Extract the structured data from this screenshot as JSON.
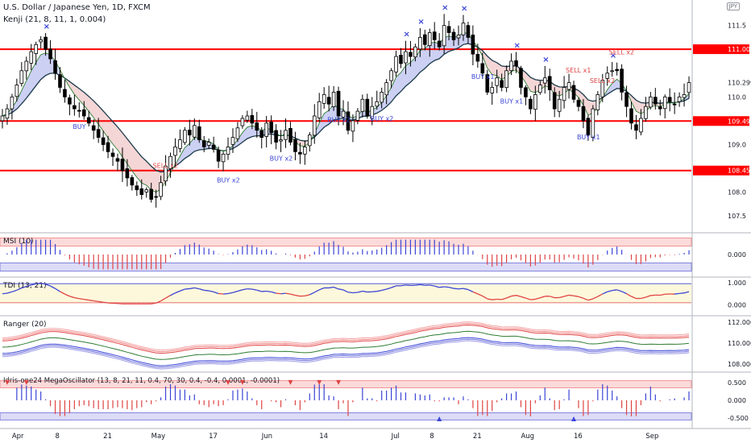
{
  "header": {
    "symbol": "U.S. Dollar / Japanese Yen, 1D, FXCM",
    "study": "Kenji (21, 8, 11, 1, 0.004)",
    "currency": "JPY"
  },
  "colors": {
    "up": "#ffffff",
    "down": "#000000",
    "level": "#ff0000",
    "buy_text": "#3b45d6",
    "sell_text": "#e04343",
    "marker": "#3b45d6",
    "cloud_bull": "#c7cbf2",
    "cloud_bear": "#f3d1d1",
    "osc_pos": "#3b45d6",
    "osc_neg": "#e04343"
  },
  "chart_data": [
    {
      "type": "candlestick",
      "title": "U.S. Dollar / Japanese Yen, 1D, FXCM",
      "ylim": [
        107.3,
        111.9
      ],
      "y_ticks": [
        107.5,
        108.0,
        109.0,
        110.0,
        111.5
      ],
      "x_tick_labels": [
        "Apr",
        "8",
        "21",
        "May",
        "17",
        "Jun",
        "14",
        "Jul",
        "8",
        "21",
        "Aug",
        "16",
        "Sep"
      ],
      "x_tick_index": [
        3,
        12,
        22,
        32,
        44,
        55,
        67,
        82,
        90,
        99,
        109,
        120,
        135
      ],
      "levels": [
        {
          "value": 111.002,
          "label": "111.002"
        },
        {
          "value": 109.494,
          "label": "109.494"
        },
        {
          "value": 108.455,
          "label": "108.455"
        }
      ],
      "last_price": {
        "value": 110.299,
        "label": "110.299"
      },
      "close": [
        109.6,
        109.75,
        110.0,
        110.25,
        110.55,
        110.75,
        110.95,
        111.1,
        111.2,
        111.0,
        110.8,
        110.5,
        110.2,
        110.0,
        109.85,
        109.75,
        109.7,
        109.6,
        109.45,
        109.3,
        109.15,
        109.0,
        108.85,
        108.75,
        108.65,
        108.45,
        108.3,
        108.15,
        108.05,
        107.95,
        108.05,
        107.85,
        107.9,
        108.2,
        108.55,
        108.75,
        108.95,
        109.1,
        109.3,
        109.2,
        109.4,
        109.1,
        108.95,
        109.05,
        108.9,
        108.65,
        108.8,
        108.95,
        109.15,
        109.35,
        109.55,
        109.6,
        109.45,
        109.3,
        109.15,
        109.45,
        109.25,
        109.05,
        109.1,
        109.3,
        109.05,
        108.85,
        108.8,
        108.95,
        109.2,
        109.6,
        109.9,
        110.05,
        109.85,
        110.1,
        109.6,
        109.7,
        109.3,
        109.5,
        109.7,
        109.95,
        109.6,
        109.8,
        109.9,
        110.1,
        110.3,
        110.55,
        110.85,
        110.7,
        110.95,
        110.85,
        111.05,
        111.25,
        111.1,
        111.35,
        111.2,
        111.05,
        111.5,
        111.35,
        111.2,
        111.3,
        111.55,
        111.25,
        110.9,
        110.75,
        110.5,
        110.1,
        110.2,
        110.4,
        110.2,
        110.55,
        110.75,
        110.65,
        110.2,
        110.0,
        109.75,
        110.05,
        110.25,
        110.4,
        110.15,
        109.75,
        109.95,
        110.2,
        110.3,
        109.95,
        109.8,
        109.5,
        109.2,
        109.75,
        110.05,
        110.35,
        110.5,
        110.55,
        110.55,
        110.1,
        109.8,
        109.45,
        109.3,
        109.55,
        109.8,
        110.0,
        109.85,
        109.75,
        110.0,
        109.9,
        109.85,
        110.0,
        110.05,
        110.3
      ],
      "ohlc_note": "close per daily bar",
      "buy_labels": [
        {
          "index": 16,
          "text": "BUY"
        },
        {
          "index": 69,
          "text": "BUY x2"
        },
        {
          "index": 78,
          "text": "BUY x2"
        },
        {
          "index": 99,
          "text": "BUY x1"
        },
        {
          "index": 105,
          "text": "BUY x1"
        },
        {
          "index": 46,
          "text": "BUY x2"
        },
        {
          "index": 57,
          "text": "BUY x2"
        },
        {
          "index": 121,
          "text": "BUY x1"
        }
      ],
      "sell_labels": [
        {
          "index": 33,
          "text": "SELL x2"
        },
        {
          "index": 119,
          "text": "SELL x1"
        },
        {
          "index": 124,
          "text": "SELL x2"
        },
        {
          "index": 128,
          "text": "SELL x2"
        }
      ]
    },
    {
      "type": "bar",
      "title": "MSI (10)",
      "ylim": [
        -1,
        1
      ],
      "y_ticks": [
        0.0
      ],
      "y_tick_labels": [
        "0.000"
      ]
    },
    {
      "type": "line",
      "title": "TDI (13, 21)",
      "ylim": [
        -0.3,
        1.1
      ],
      "y_ticks": [
        1.0,
        0.0
      ],
      "y_tick_labels": [
        "1.000",
        "0.000"
      ]
    },
    {
      "type": "line",
      "title": "Ranger (20)",
      "ylim": [
        107.6,
        112.3
      ],
      "y_ticks": [
        112.0,
        110.0,
        108.0
      ],
      "y_tick_labels": [
        "112.000",
        "110.000",
        "108.000"
      ]
    },
    {
      "type": "bar",
      "title": "Idris-one24 MegaOscillator (13, 8, 21, 11, 0.4, 70, 30, 0.4, -0.4, 0.0001, -0.0001)",
      "ylim": [
        -0.7,
        0.7
      ],
      "y_ticks": [
        0.5,
        0.0,
        -0.5
      ],
      "y_tick_labels": [
        "0.500",
        "0.000",
        "-0.500"
      ]
    }
  ]
}
